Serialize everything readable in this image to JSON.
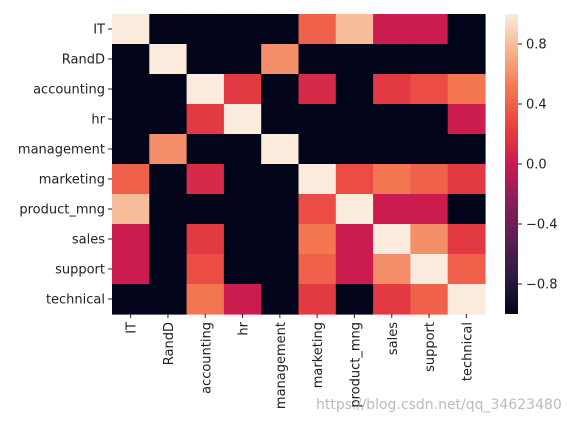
{
  "chart_data": {
    "type": "heatmap",
    "title": "",
    "xlabel": "",
    "ylabel": "",
    "categories": [
      "IT",
      "RandD",
      "accounting",
      "hr",
      "management",
      "marketing",
      "product_mng",
      "sales",
      "support",
      "technical"
    ],
    "values": [
      [
        1.0,
        -1.0,
        -1.0,
        -1.0,
        -1.0,
        0.4,
        0.8,
        0.0,
        0.0,
        -1.0
      ],
      [
        -1.0,
        1.0,
        -1.0,
        -1.0,
        0.6,
        -1.0,
        -1.0,
        -1.0,
        -1.0,
        -1.0
      ],
      [
        -1.0,
        -1.0,
        1.0,
        0.2,
        -1.0,
        0.1,
        -1.0,
        0.2,
        0.3,
        0.5
      ],
      [
        -1.0,
        -1.0,
        0.2,
        1.0,
        -1.0,
        -1.0,
        -1.0,
        -1.0,
        -1.0,
        0.0
      ],
      [
        -1.0,
        0.6,
        -1.0,
        -1.0,
        1.0,
        -1.0,
        -1.0,
        -1.0,
        -1.0,
        -1.0
      ],
      [
        0.4,
        -1.0,
        0.1,
        -1.0,
        -1.0,
        1.0,
        0.3,
        0.5,
        0.4,
        0.2
      ],
      [
        0.8,
        -1.0,
        -1.0,
        -1.0,
        -1.0,
        0.3,
        1.0,
        0.0,
        0.0,
        -1.0
      ],
      [
        0.0,
        -1.0,
        0.2,
        -1.0,
        -1.0,
        0.5,
        0.0,
        1.0,
        0.6,
        0.2
      ],
      [
        0.0,
        -1.0,
        0.3,
        -1.0,
        -1.0,
        0.4,
        0.0,
        0.6,
        1.0,
        0.4
      ],
      [
        -1.0,
        -1.0,
        0.5,
        0.0,
        -1.0,
        0.2,
        -1.0,
        0.2,
        0.4,
        1.0
      ]
    ],
    "vmin": -1.0,
    "vmax": 1.0,
    "colormap": "rocket",
    "colorbar_ticks": [
      0.8,
      0.4,
      0.0,
      -0.4,
      -0.8
    ],
    "colorbar_tick_labels": [
      "0.8",
      "0.4",
      "0.0",
      "−0.4",
      "−0.8"
    ],
    "grid": false,
    "colorbar_position": "right"
  },
  "watermark": "https://blog.csdn.net/qq_34623480"
}
